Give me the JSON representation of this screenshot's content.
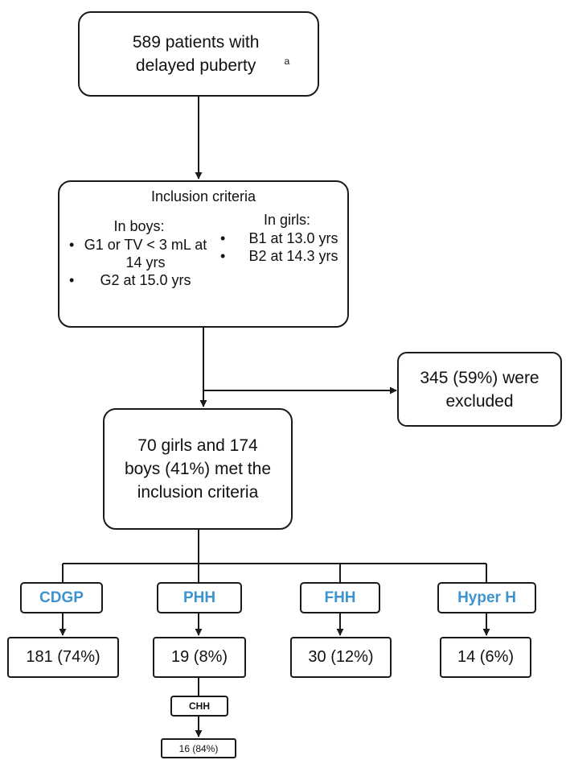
{
  "start": {
    "text": "589 patients with delayed puberty",
    "footnote": "a"
  },
  "criteria": {
    "title": "Inclusion criteria",
    "boys": {
      "heading": "In boys:",
      "items": [
        "G1 or TV < 3 mL at 14 yrs",
        "G2 at 15.0 yrs"
      ]
    },
    "girls": {
      "heading": "In girls:",
      "items": [
        "B1 at 13.0 yrs",
        "B2 at 14.3 yrs"
      ]
    }
  },
  "excluded": {
    "text": "345 (59%) were excluded"
  },
  "included": {
    "text": "70 girls and 174 boys (41%) met the inclusion criteria"
  },
  "groups": [
    {
      "label": "CDGP",
      "result": "181 (74%)"
    },
    {
      "label": "PHH",
      "result": "19 (8%)"
    },
    {
      "label": "FHH",
      "result": "30 (12%)"
    },
    {
      "label": "Hyper H",
      "result": "14 (6%)"
    }
  ],
  "subgroup": {
    "label": "CHH",
    "result": "16 (84%)"
  },
  "colors": {
    "line": "#1a1a1a",
    "group_label": "#3c94cf"
  }
}
